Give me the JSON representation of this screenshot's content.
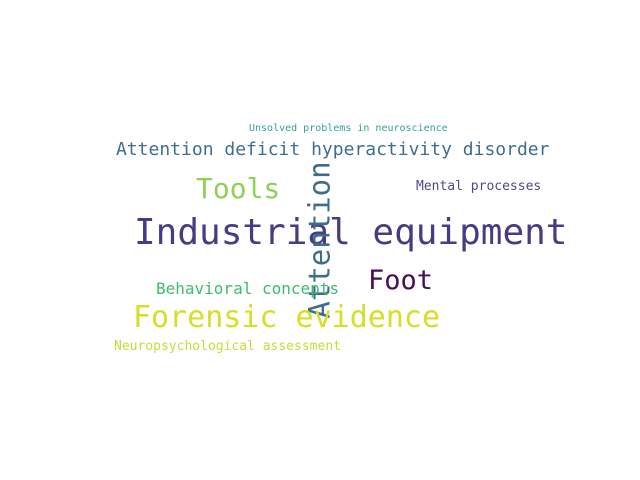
{
  "words": [
    {
      "key": "unsolved",
      "text": "Unsolved problems in neuroscience",
      "color": "#35a09a"
    },
    {
      "key": "adhd",
      "text": "Attention deficit hyperactivity disorder",
      "color": "#3f6e8f"
    },
    {
      "key": "tools",
      "text": "Tools",
      "color": "#8fd155"
    },
    {
      "key": "mental",
      "text": "Mental processes",
      "color": "#4f4a87"
    },
    {
      "key": "industrial",
      "text": "Industrial equipment",
      "color": "#453c82"
    },
    {
      "key": "attention",
      "text": "Attention",
      "color": "#3e6c8d"
    },
    {
      "key": "foot",
      "text": "Foot",
      "color": "#480e54"
    },
    {
      "key": "behavioral",
      "text": "Behavioral concepts",
      "color": "#3fbb6e"
    },
    {
      "key": "forensic",
      "text": "Forensic evidence",
      "color": "#d6df27"
    },
    {
      "key": "neuro",
      "text": "Neuropsychological assessment",
      "color": "#c5dd3c"
    }
  ]
}
